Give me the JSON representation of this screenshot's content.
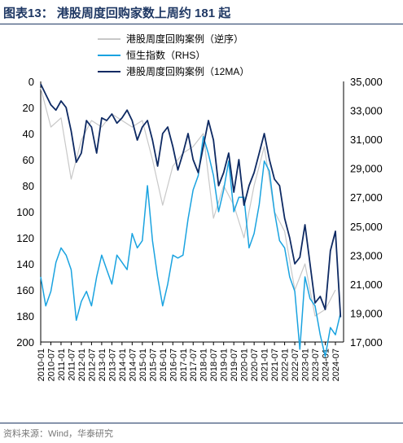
{
  "header": {
    "title": "图表13：  港股周度回购家数上周约 181 起"
  },
  "footer": {
    "source": "资料来源：Wind，华泰研究"
  },
  "chart_data": {
    "type": "line",
    "title": "图表13：  港股周度回购家数上周约 181 起",
    "x_labels": [
      "2010-01",
      "2010-07",
      "2011-01",
      "2011-07",
      "2012-01",
      "2012-07",
      "2013-01",
      "2013-07",
      "2014-01",
      "2014-07",
      "2015-01",
      "2015-07",
      "2016-01",
      "2016-07",
      "2017-01",
      "2017-07",
      "2018-01",
      "2018-07",
      "2019-01",
      "2019-07",
      "2020-01",
      "2020-07",
      "2021-01",
      "2021-07",
      "2022-01",
      "2022-07",
      "2023-01",
      "2023-07",
      "2024-01",
      "2024-07"
    ],
    "y_left": {
      "reversed": true,
      "ylim": [
        0,
        200
      ],
      "ticks": [
        0,
        20,
        40,
        60,
        80,
        100,
        120,
        140,
        160,
        180,
        200
      ]
    },
    "y_right": {
      "ylim": [
        17000,
        35000
      ],
      "ticks": [
        "17,000",
        "19,000",
        "21,000",
        "23,000",
        "25,000",
        "27,000",
        "29,000",
        "31,000",
        "33,000",
        "35,000"
      ]
    },
    "legend": {
      "placement": "top-center"
    },
    "series": [
      {
        "name": "港股周度回购案例（逆序）",
        "axis": "left",
        "color": "#c8c8c8",
        "x": [
          2010.0,
          2010.5,
          2011.0,
          2011.5,
          2012.0,
          2012.5,
          2013.0,
          2013.5,
          2014.0,
          2014.5,
          2015.0,
          2015.5,
          2016.0,
          2016.5,
          2017.0,
          2017.5,
          2018.0,
          2018.5,
          2019.0,
          2019.5,
          2020.0,
          2020.5,
          2021.0,
          2021.5,
          2022.0,
          2022.5,
          2023.0,
          2023.5,
          2024.0,
          2024.5
        ],
        "values": [
          5,
          35,
          28,
          75,
          45,
          30,
          35,
          25,
          30,
          35,
          30,
          60,
          95,
          65,
          55,
          50,
          40,
          105,
          80,
          95,
          120,
          80,
          50,
          100,
          115,
          160,
          140,
          180,
          175,
          160
        ]
      },
      {
        "name": "恒生指数（RHS）",
        "axis": "right",
        "color": "#1aa3e0",
        "x": [
          2010.0,
          2010.25,
          2010.5,
          2010.75,
          2011.0,
          2011.25,
          2011.5,
          2011.75,
          2012.0,
          2012.25,
          2012.5,
          2012.75,
          2013.0,
          2013.25,
          2013.5,
          2013.75,
          2014.0,
          2014.25,
          2014.5,
          2014.75,
          2015.0,
          2015.25,
          2015.5,
          2015.75,
          2016.0,
          2016.25,
          2016.5,
          2016.75,
          2017.0,
          2017.25,
          2017.5,
          2017.75,
          2018.0,
          2018.25,
          2018.5,
          2018.75,
          2019.0,
          2019.25,
          2019.5,
          2019.75,
          2020.0,
          2020.25,
          2020.5,
          2020.75,
          2021.0,
          2021.25,
          2021.5,
          2021.75,
          2022.0,
          2022.25,
          2022.5,
          2022.75,
          2023.0,
          2023.25,
          2023.5,
          2023.75,
          2024.0,
          2024.25,
          2024.5,
          2024.75
        ],
        "values": [
          21500,
          19500,
          20500,
          22500,
          23500,
          23000,
          22000,
          18500,
          19800,
          20500,
          19500,
          21500,
          23000,
          22000,
          21000,
          23000,
          22500,
          22000,
          24500,
          23500,
          24000,
          27800,
          24000,
          21500,
          19500,
          21000,
          23000,
          22800,
          23000,
          25500,
          27500,
          28500,
          31200,
          30000,
          28500,
          26000,
          27500,
          29500,
          26000,
          27000,
          27000,
          23500,
          24500,
          26500,
          29500,
          28800,
          26000,
          24000,
          23500,
          21500,
          20500,
          16500,
          21500,
          20000,
          19500,
          17500,
          16000,
          18000,
          17500,
          19000
        ]
      },
      {
        "name": "港股周度回购案例（12MA）",
        "axis": "left",
        "color": "#0e2a63",
        "x": [
          2010.0,
          2010.25,
          2010.5,
          2010.75,
          2011.0,
          2011.25,
          2011.5,
          2011.75,
          2012.0,
          2012.25,
          2012.5,
          2012.75,
          2013.0,
          2013.25,
          2013.5,
          2013.75,
          2014.0,
          2014.25,
          2014.5,
          2014.75,
          2015.0,
          2015.25,
          2015.5,
          2015.75,
          2016.0,
          2016.25,
          2016.5,
          2016.75,
          2017.0,
          2017.25,
          2017.5,
          2017.75,
          2018.0,
          2018.25,
          2018.5,
          2018.75,
          2019.0,
          2019.25,
          2019.5,
          2019.75,
          2020.0,
          2020.25,
          2020.5,
          2020.75,
          2021.0,
          2021.25,
          2021.5,
          2021.75,
          2022.0,
          2022.25,
          2022.5,
          2022.75,
          2023.0,
          2023.25,
          2023.5,
          2023.75,
          2024.0,
          2024.25,
          2024.5,
          2024.75
        ],
        "values": [
          2,
          10,
          18,
          22,
          15,
          20,
          38,
          62,
          55,
          30,
          35,
          55,
          28,
          30,
          25,
          32,
          28,
          22,
          30,
          45,
          35,
          30,
          45,
          65,
          40,
          35,
          50,
          68,
          55,
          40,
          60,
          70,
          50,
          30,
          45,
          80,
          70,
          55,
          85,
          60,
          95,
          80,
          70,
          55,
          40,
          60,
          75,
          80,
          105,
          120,
          140,
          135,
          110,
          140,
          170,
          165,
          175,
          130,
          115,
          181
        ]
      }
    ]
  }
}
